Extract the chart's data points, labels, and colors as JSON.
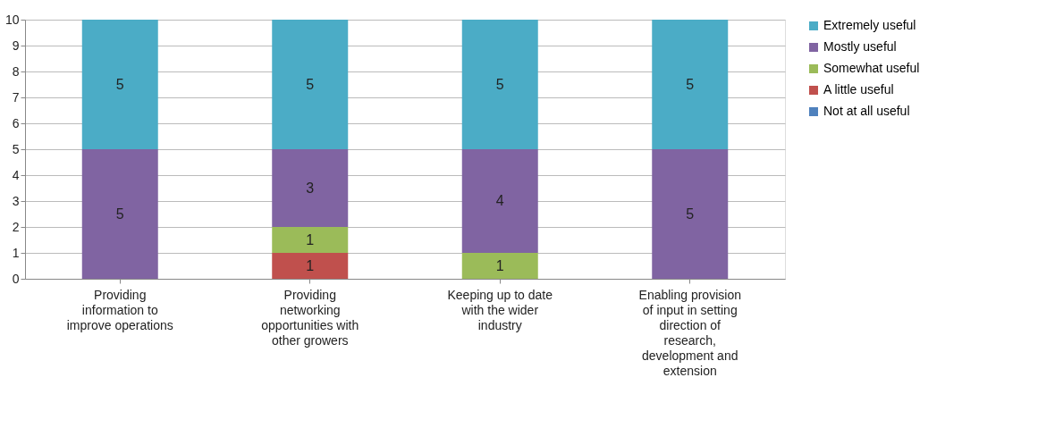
{
  "chart_data": {
    "type": "bar",
    "stacked": true,
    "categories": [
      "Providing information to improve operations",
      "Providing networking opportunities with other growers",
      "Keeping up to date with the wider industry",
      "Enabling provision of input in setting direction of research, development and extension"
    ],
    "series": [
      {
        "name": "Not at all useful",
        "color": "#4f81bd",
        "values": [
          0,
          0,
          0,
          0
        ],
        "value_labels": [
          null,
          null,
          null,
          null
        ]
      },
      {
        "name": "A little useful",
        "color": "#c0504d",
        "values": [
          0,
          1,
          0,
          0
        ],
        "value_labels": [
          null,
          "1",
          null,
          null
        ]
      },
      {
        "name": "Somewhat useful",
        "color": "#9bbb59",
        "values": [
          0,
          1,
          1,
          0
        ],
        "value_labels": [
          null,
          "1",
          "1",
          null
        ]
      },
      {
        "name": "Mostly useful",
        "color": "#8064a2",
        "values": [
          5,
          3,
          4,
          5
        ],
        "value_labels": [
          "5",
          "3",
          "4",
          "5"
        ]
      },
      {
        "name": "Extremely useful",
        "color": "#4bacc6",
        "values": [
          5,
          5,
          5,
          5
        ],
        "value_labels": [
          "5",
          "5",
          "5",
          "5"
        ]
      }
    ],
    "ylim": [
      0,
      10
    ],
    "yticks": [
      0,
      1,
      2,
      3,
      4,
      5,
      6,
      7,
      8,
      9,
      10
    ],
    "grid": "y",
    "legend": "right"
  }
}
